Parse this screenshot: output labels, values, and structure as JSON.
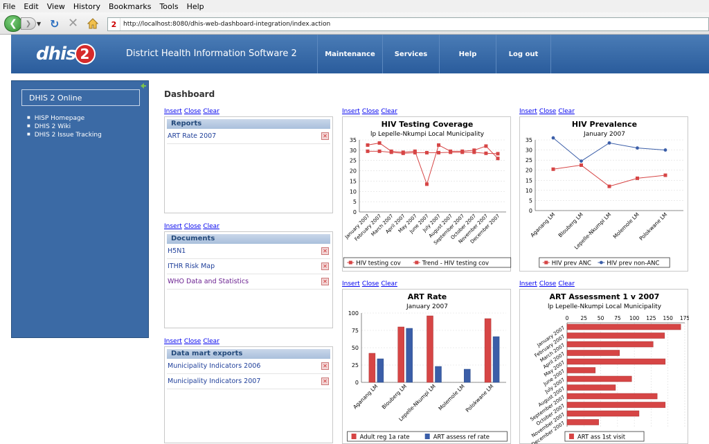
{
  "browser": {
    "menu": [
      "File",
      "Edit",
      "View",
      "History",
      "Bookmarks",
      "Tools",
      "Help"
    ],
    "url": "http://localhost:8080/dhis-web-dashboard-integration/index.action",
    "url_badge": "2"
  },
  "app": {
    "logo_text": "dhis",
    "logo_num": "2",
    "title": "District Health Information Software 2",
    "nav": [
      "Maintenance",
      "Services",
      "Help",
      "Log out"
    ]
  },
  "sidebar": {
    "title": "DHIS 2 Online",
    "links": [
      "HISP Homepage",
      "DHIS 2 Wiki",
      "DHIS 2 Issue Tracking"
    ]
  },
  "dashboard": {
    "title": "Dashboard",
    "link_labels": [
      "Insert",
      "Close",
      "Clear"
    ],
    "delete_glyph": "✕",
    "panels": [
      {
        "heading": "Reports",
        "items": [
          "ART Rate 2007"
        ]
      },
      {
        "heading": "Documents",
        "items": [
          "H5N1",
          "ITHR Risk Map",
          "WHO Data and Statistics"
        ]
      },
      {
        "heading": "Data mart exports",
        "items": [
          "Municipality Indicators 2006",
          "Municipality Indicators 2007"
        ]
      }
    ]
  },
  "colors": {
    "red": "#d64545",
    "blue": "#3b5ea8",
    "header": "#2f5f9f"
  },
  "chart_data": [
    {
      "type": "line",
      "title": "HIV Testing Coverage",
      "subtitle": "lp Lepelle-Nkumpi Local Municipality",
      "categories": [
        "January 2007",
        "February 2007",
        "March 2007",
        "April 2007",
        "May 2007",
        "June 2007",
        "July 2007",
        "August 2007",
        "September 2007",
        "October 2007",
        "November 2007",
        "December 2007"
      ],
      "ylim": [
        0,
        35
      ],
      "yticks": [
        0,
        5,
        10,
        15,
        20,
        25,
        30,
        35
      ],
      "series": [
        {
          "name": "HIV testing cov",
          "values": [
            32.5,
            33.5,
            29.5,
            29,
            29.5,
            13.5,
            32.5,
            29.5,
            29.5,
            30,
            32,
            26
          ]
        },
        {
          "name": "Trend - HIV testing cov",
          "values": [
            29.5,
            29.5,
            29,
            28.5,
            28.8,
            28.8,
            28.8,
            29,
            29,
            29,
            28.5,
            28.3
          ]
        }
      ],
      "legend": "bottom"
    },
    {
      "type": "line",
      "title": "HIV Prevalence",
      "subtitle": "January 2007",
      "categories": [
        "Aganang LM",
        "Blouberg LM",
        "Lepelle-Nkumpi LM",
        "Molemole LM",
        "Polokwane LM"
      ],
      "ylim": [
        0,
        35
      ],
      "yticks": [
        0,
        5,
        10,
        15,
        20,
        25,
        30,
        35
      ],
      "series": [
        {
          "name": "HIV prev ANC",
          "values": [
            20.5,
            22.5,
            12,
            16,
            17.5
          ]
        },
        {
          "name": "HIV prev non-ANC",
          "values": [
            36,
            24.5,
            33.5,
            31,
            30
          ]
        }
      ],
      "legend": "bottom"
    },
    {
      "type": "bar",
      "title": "ART Rate",
      "subtitle": "January 2007",
      "categories": [
        "Aganang LM",
        "Blouberg LM",
        "Lepelle-Nkumpi LM",
        "Molemole LM",
        "Polokwane LM"
      ],
      "ylim": [
        0,
        100
      ],
      "yticks": [
        0,
        25,
        50,
        75,
        100
      ],
      "series": [
        {
          "name": "Adult reg 1a rate",
          "values": [
            42,
            80,
            96,
            0,
            92
          ]
        },
        {
          "name": "ART assess ref rate",
          "values": [
            34,
            78,
            23,
            19,
            66
          ]
        }
      ],
      "legend": "bottom"
    },
    {
      "type": "bar",
      "orientation": "horizontal",
      "title": "ART Assessment 1 v 2007",
      "subtitle": "lp Lepelle-Nkumpi Local Municipality",
      "categories": [
        "January 2007",
        "February 2007",
        "March 2007",
        "April 2007",
        "May 2007",
        "June 2007",
        "July 2007",
        "August 2007",
        "September 2007",
        "October 2007",
        "November 2007",
        "December 2007"
      ],
      "xlim": [
        0,
        175
      ],
      "xticks": [
        0,
        25,
        50,
        75,
        100,
        125,
        150,
        175
      ],
      "series": [
        {
          "name": "ART ass 1st visit",
          "values": [
            169,
            145,
            128,
            78,
            146,
            42,
            96,
            72,
            134,
            146,
            107,
            47
          ]
        }
      ],
      "legend": "bottom"
    }
  ]
}
